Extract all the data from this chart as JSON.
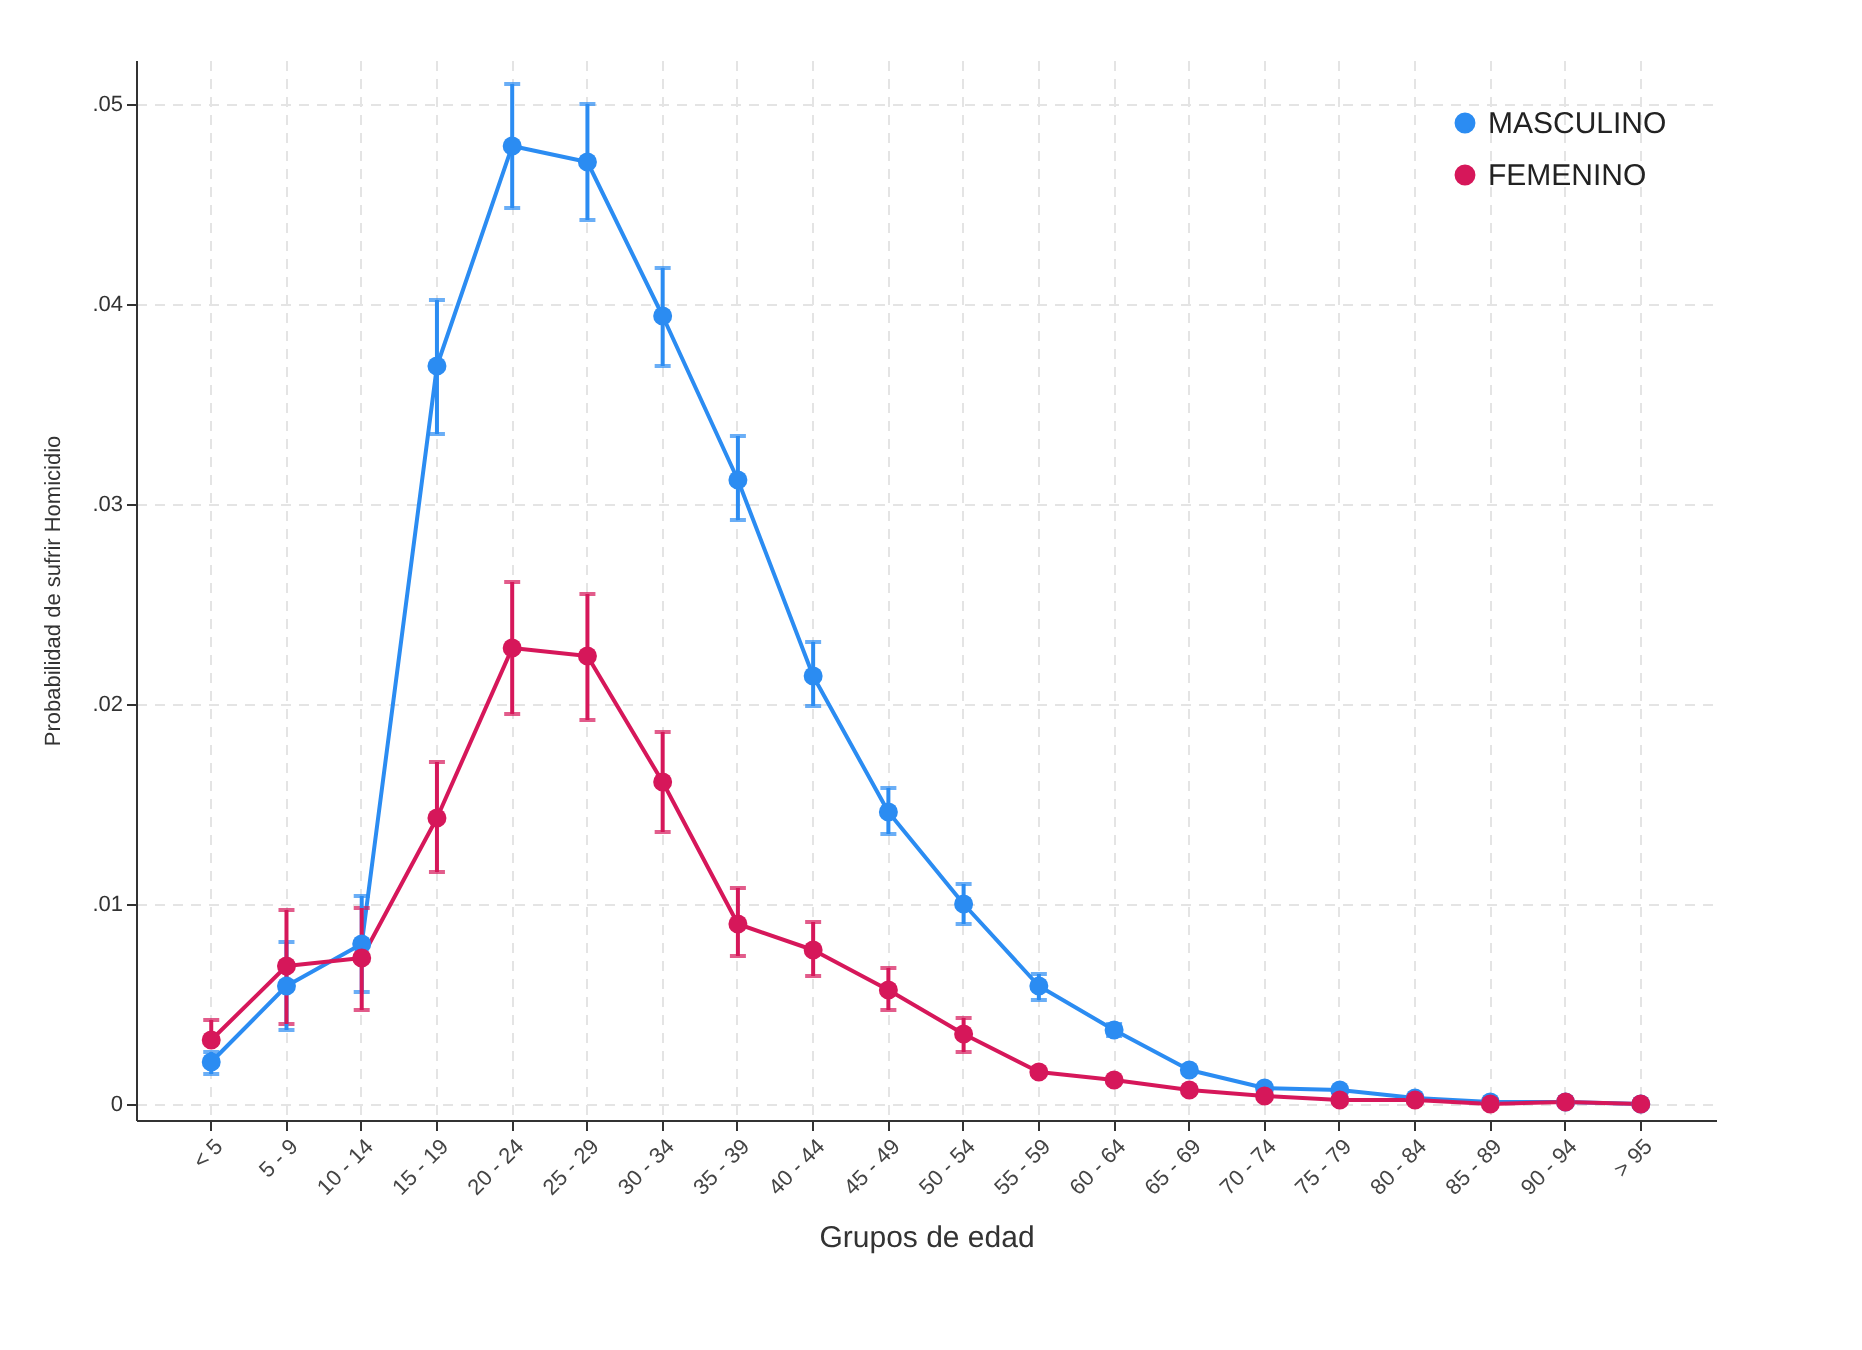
{
  "chart_data": {
    "type": "line",
    "xlabel": "Grupos de edad",
    "ylabel": "Probabilidad de sufrir Homicidio",
    "categories": [
      "< 5",
      "5 - 9",
      "10 - 14",
      "15 - 19",
      "20 - 24",
      "25 - 29",
      "30 - 34",
      "35 - 39",
      "40 - 44",
      "45 - 49",
      "50 - 54",
      "55 - 59",
      "60 - 64",
      "65 - 69",
      "70 - 74",
      "75 - 79",
      "80 - 84",
      "85 - 89",
      "90 - 94",
      "> 95"
    ],
    "series": [
      {
        "name": "MASCULINO",
        "color": "#2b8cf2",
        "values": [
          0.0021,
          0.0059,
          0.008,
          0.0369,
          0.0479,
          0.0471,
          0.0394,
          0.0312,
          0.0214,
          0.0146,
          0.01,
          0.0059,
          0.0037,
          0.0017,
          0.0008,
          0.0007,
          0.0003,
          0.0001,
          0.0001,
          0.0
        ],
        "errors": [
          [
            0.0015,
            0.0026
          ],
          [
            0.0037,
            0.0081
          ],
          [
            0.0056,
            0.0104
          ],
          [
            0.0335,
            0.0402
          ],
          [
            0.0448,
            0.051
          ],
          [
            0.0442,
            0.05
          ],
          [
            0.0369,
            0.0418
          ],
          [
            0.0292,
            0.0334
          ],
          [
            0.0199,
            0.0231
          ],
          [
            0.0135,
            0.0158
          ],
          [
            0.009,
            0.011
          ],
          [
            0.0052,
            0.0065
          ],
          [
            0.0034,
            0.004
          ],
          null,
          null,
          null,
          null,
          null,
          null,
          null
        ]
      },
      {
        "name": "FEMENINO",
        "color": "#d6175a",
        "values": [
          0.0032,
          0.0069,
          0.0073,
          0.0143,
          0.0228,
          0.0224,
          0.0161,
          0.009,
          0.0077,
          0.0057,
          0.0035,
          0.0016,
          0.0012,
          0.0007,
          0.0004,
          0.0002,
          0.0002,
          0.0,
          0.0001,
          0.0
        ],
        "errors": [
          [
            0.0032,
            0.0042
          ],
          [
            0.004,
            0.0097
          ],
          [
            0.0047,
            0.0098
          ],
          [
            0.0116,
            0.0171
          ],
          [
            0.0195,
            0.0261
          ],
          [
            0.0192,
            0.0255
          ],
          [
            0.0136,
            0.0186
          ],
          [
            0.0074,
            0.0108
          ],
          [
            0.0064,
            0.0091
          ],
          [
            0.0047,
            0.0068
          ],
          [
            0.0026,
            0.0043
          ],
          null,
          null,
          null,
          null,
          null,
          null,
          null,
          null,
          null
        ]
      }
    ],
    "ylim": [
      -0.0008,
      0.0522
    ],
    "yticks": [
      {
        "value": 0,
        "label": "0"
      },
      {
        "value": 0.01,
        "label": ".01"
      },
      {
        "value": 0.02,
        "label": ".02"
      },
      {
        "value": 0.03,
        "label": ".03"
      },
      {
        "value": 0.04,
        "label": ".04"
      },
      {
        "value": 0.05,
        "label": ".05"
      }
    ],
    "grid": true,
    "legend": "top right",
    "marker": "circle",
    "line_style": "solid"
  }
}
